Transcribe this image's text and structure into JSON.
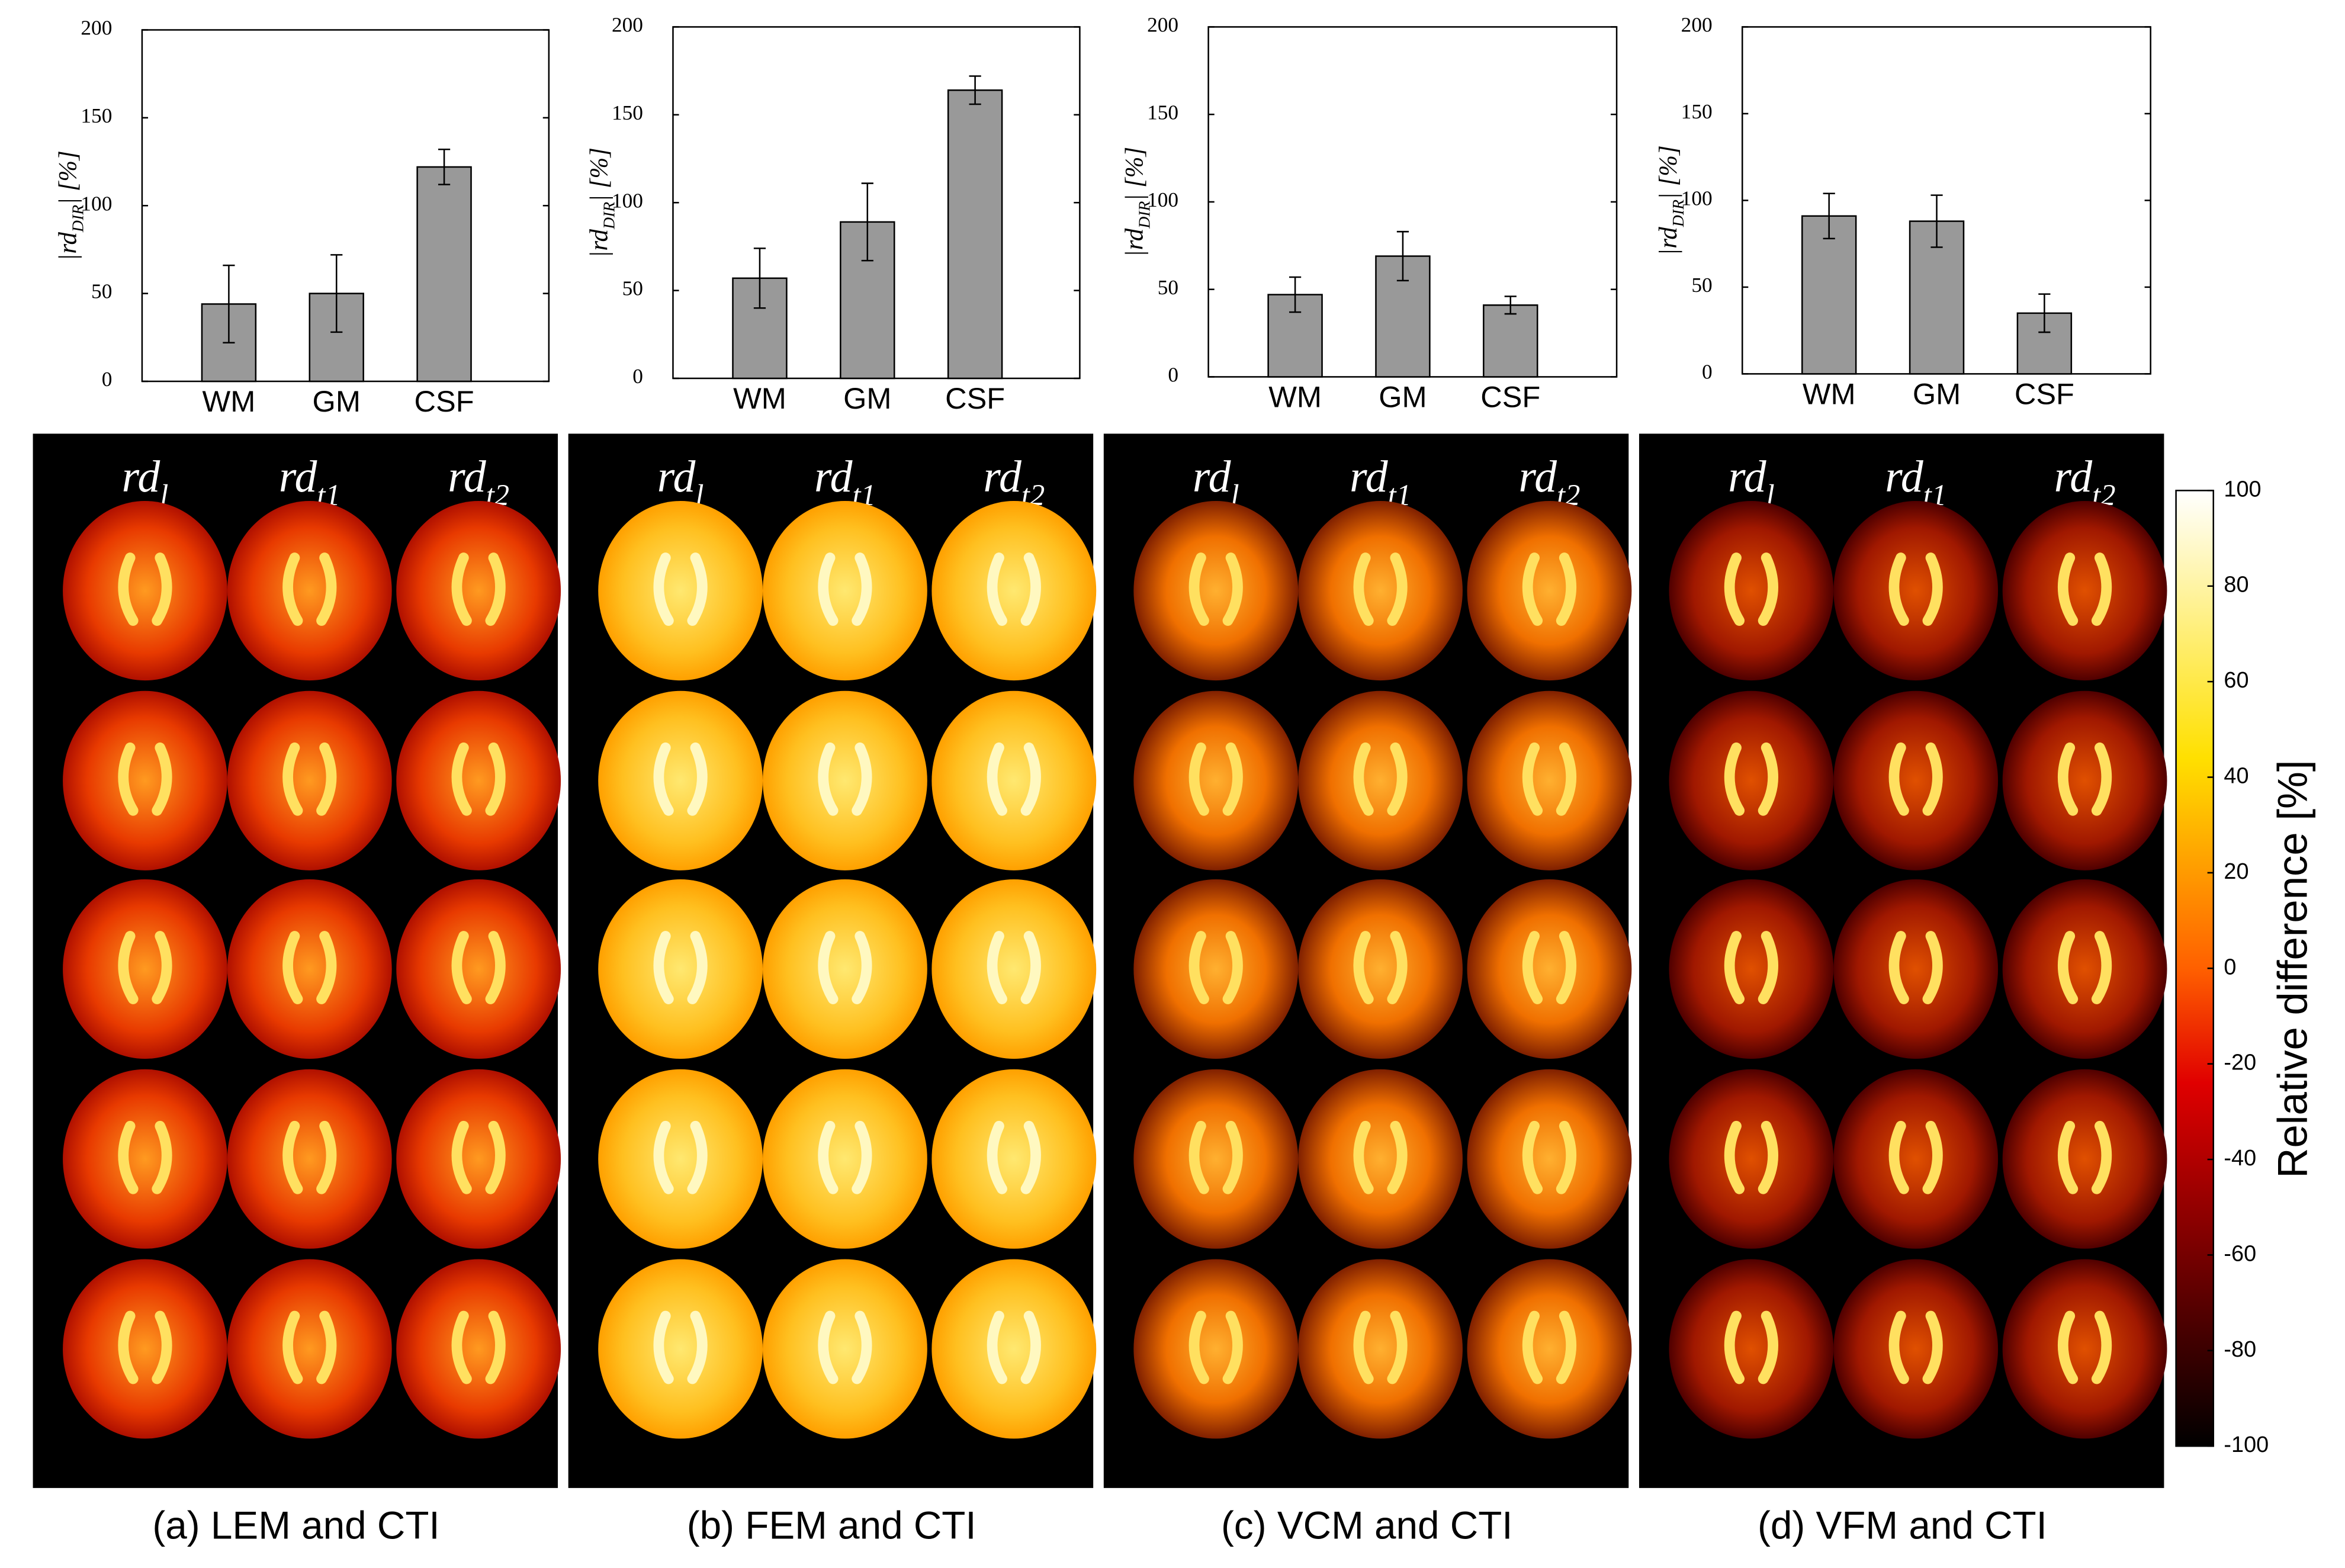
{
  "chart_data": [
    {
      "type": "bar",
      "categories": [
        "WM",
        "GM",
        "CSF"
      ],
      "values": [
        44,
        50,
        122
      ],
      "errors": [
        22,
        22,
        10
      ],
      "color": "#999999",
      "ylim": [
        0,
        200
      ],
      "yticks": [
        0,
        50,
        100,
        150,
        200
      ],
      "ylabel": {
        "base": "|rd",
        "sub": "DIR",
        "end": "| [%]"
      }
    },
    {
      "type": "bar",
      "categories": [
        "WM",
        "GM",
        "CSF"
      ],
      "values": [
        57,
        89,
        164
      ],
      "errors": [
        17,
        22,
        8
      ],
      "color": "#999999",
      "ylim": [
        0,
        200
      ],
      "yticks": [
        0,
        50,
        100,
        150,
        200
      ],
      "ylabel": {
        "base": "|rd",
        "sub": "DIR",
        "end": "| [%]"
      }
    },
    {
      "type": "bar",
      "categories": [
        "WM",
        "GM",
        "CSF"
      ],
      "values": [
        47,
        69,
        41
      ],
      "errors": [
        10,
        14,
        5
      ],
      "color": "#999999",
      "ylim": [
        0,
        200
      ],
      "yticks": [
        0,
        50,
        100,
        150,
        200
      ],
      "ylabel": {
        "base": "|rd",
        "sub": "DIR",
        "end": "| [%]"
      }
    },
    {
      "type": "bar",
      "categories": [
        "WM",
        "GM",
        "CSF"
      ],
      "values": [
        91,
        88,
        35
      ],
      "errors": [
        13,
        15,
        11
      ],
      "color": "#999999",
      "ylim": [
        0,
        200
      ],
      "yticks": [
        0,
        50,
        100,
        150,
        200
      ],
      "ylabel": {
        "base": "|rd",
        "sub": "DIR",
        "end": "| [%]"
      }
    }
  ],
  "panels": [
    {
      "caption": "(a) LEM and CTI",
      "columns": [
        {
          "base": "rd",
          "sub": "l"
        },
        {
          "base": "rd",
          "sub": "t1"
        },
        {
          "base": "rd",
          "sub": "t2"
        }
      ]
    },
    {
      "caption": "(b) FEM and CTI",
      "columns": [
        {
          "base": "rd",
          "sub": "l"
        },
        {
          "base": "rd",
          "sub": "t1"
        },
        {
          "base": "rd",
          "sub": "t2"
        }
      ]
    },
    {
      "caption": "(c) VCM and CTI",
      "columns": [
        {
          "base": "rd",
          "sub": "l"
        },
        {
          "base": "rd",
          "sub": "t1"
        },
        {
          "base": "rd",
          "sub": "t2"
        }
      ]
    },
    {
      "caption": "(d) VFM and CTI",
      "columns": [
        {
          "base": "rd",
          "sub": "l"
        },
        {
          "base": "rd",
          "sub": "t1"
        },
        {
          "base": "rd",
          "sub": "t2"
        }
      ]
    }
  ],
  "colorbar": {
    "ylim": [
      -100,
      100
    ],
    "ticks": [
      -100,
      -80,
      -60,
      -40,
      -20,
      0,
      20,
      40,
      60,
      80,
      100
    ],
    "label": "Relative difference [%]"
  }
}
